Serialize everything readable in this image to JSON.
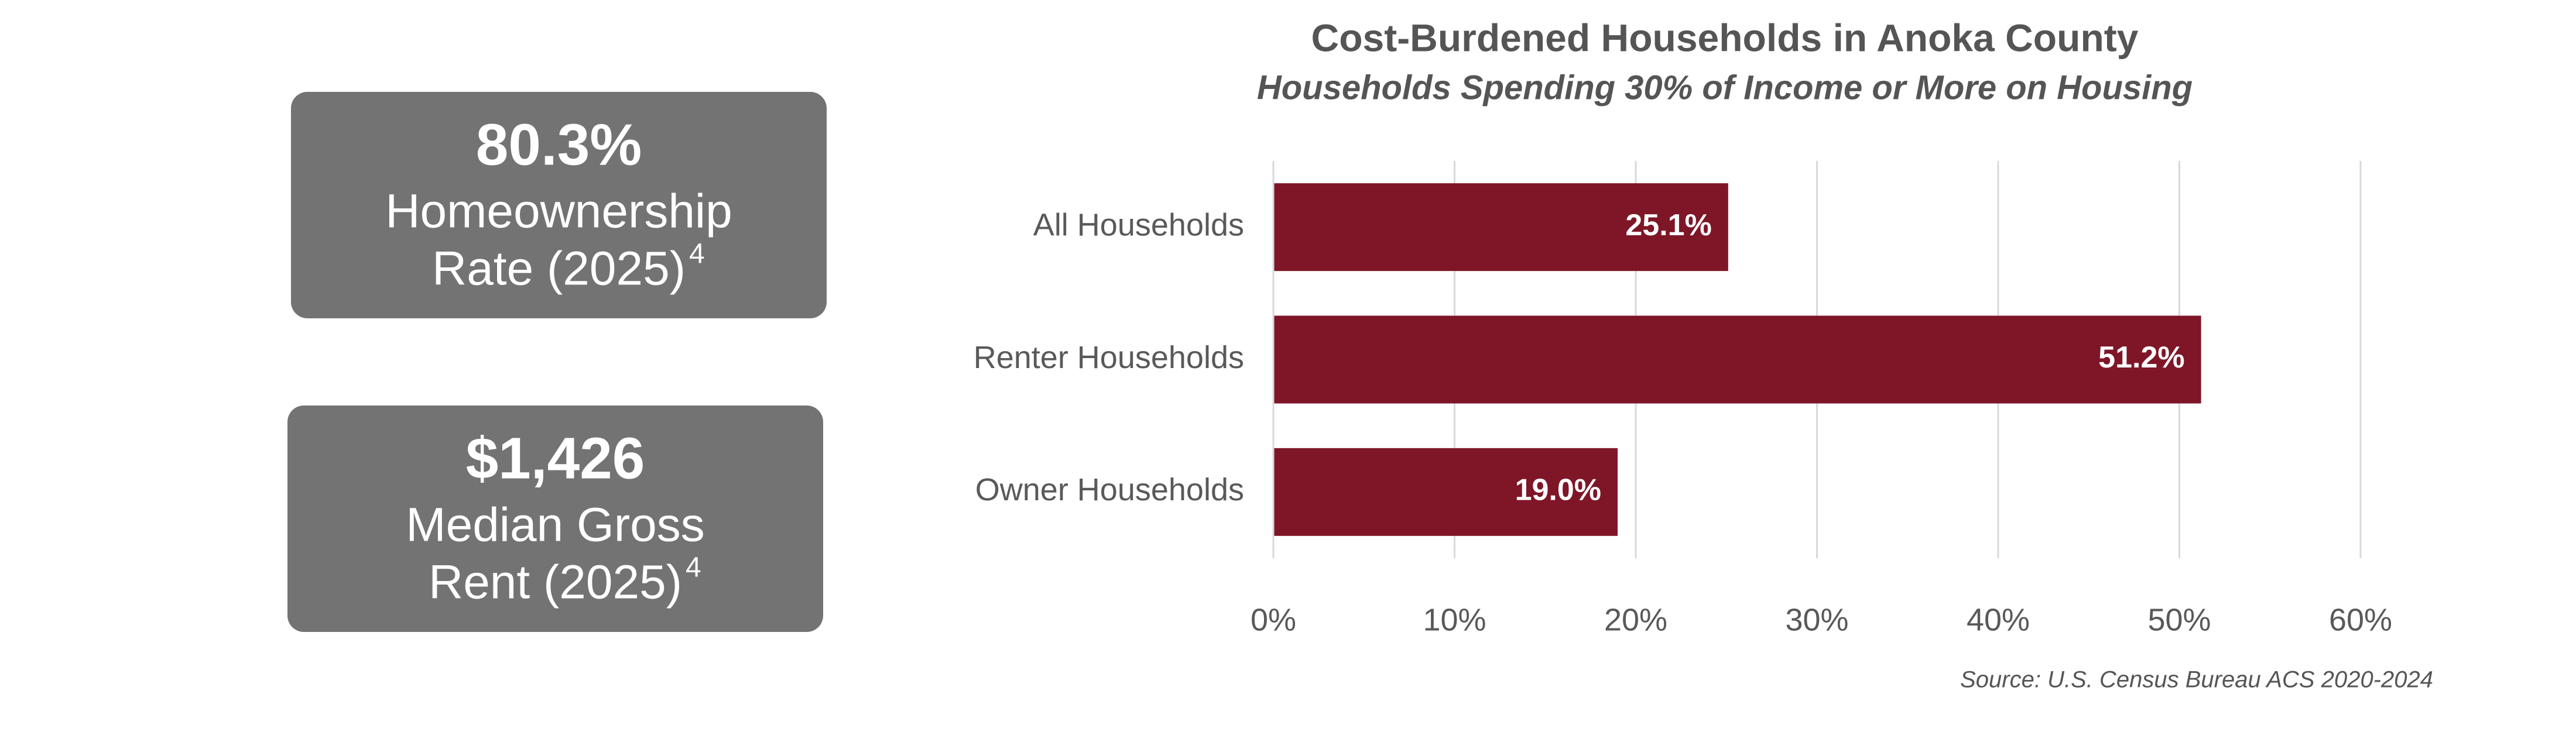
{
  "stats": [
    {
      "value": "80.3%",
      "line1": "Homeownership",
      "line2": "Rate (2025)",
      "footnote": "4"
    },
    {
      "value": "$1,426",
      "line1": "Median Gross",
      "line2": "Rent (2025)",
      "footnote": "4"
    }
  ],
  "chart_data": {
    "type": "bar",
    "orientation": "horizontal",
    "title": "Cost-Burdened Households in Anoka County",
    "subtitle": "Households Spending 30% of Income or More on Housing",
    "categories": [
      "All Households",
      "Renter Households",
      "Owner Households"
    ],
    "values": [
      25.1,
      51.2,
      19.0
    ],
    "value_labels": [
      "25.1%",
      "51.2%",
      "19.0%"
    ],
    "color": "#7e1628",
    "xlim": [
      0,
      60
    ],
    "xticks": [
      {
        "value": 0,
        "label": "0%"
      },
      {
        "value": 10,
        "label": "10%"
      },
      {
        "value": 20,
        "label": "20%"
      },
      {
        "value": 30,
        "label": "30%"
      },
      {
        "value": 40,
        "label": "40%"
      },
      {
        "value": 50,
        "label": "50%"
      },
      {
        "value": 60,
        "label": "60%"
      }
    ],
    "grid": true,
    "source": "Source: U.S. Census Bureau ACS 2020-2024"
  }
}
